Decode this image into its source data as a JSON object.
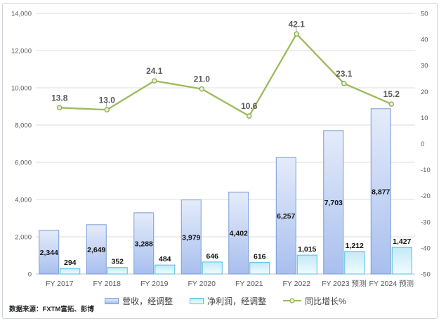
{
  "chart": {
    "source_note": "数据来源：FXTM富拓、彭博",
    "legend": [
      {
        "label": "营收，经调整"
      },
      {
        "label": "净利润，经调整"
      },
      {
        "label": "同比增长%"
      }
    ],
    "colors": {
      "revenue_border": "#7d9bd6",
      "revenue_fill_top": "#e4ecfa",
      "revenue_fill_bottom": "#a8bfee",
      "net_border": "#4ec1e0",
      "net_fill_top": "#c2eaf7",
      "net_fill_bottom": "#f2fbfe",
      "growth_line": "#9bbb59",
      "marker_fill": "#e8efda",
      "marker_stroke": "#8cab50",
      "gridline": "#dcdcdc",
      "axis_line": "#bfbfbf"
    }
  },
  "chart_data": {
    "type": "combo-bar-line",
    "categories": [
      "FY 2017",
      "FY 2018",
      "FY 2019",
      "FY 2020",
      "FY 2021",
      "FY 2022",
      "FY 2023 预测",
      "FY 2024 预测"
    ],
    "series": [
      {
        "name": "营收，经调整",
        "type": "bar",
        "axis": "left",
        "values": [
          2344,
          2649,
          3288,
          3979,
          4402,
          6257,
          7703,
          8877
        ],
        "labels": [
          "2,344",
          "2,649",
          "3,288",
          "3,979",
          "4,402",
          "6,257",
          "7,703",
          "8,877"
        ]
      },
      {
        "name": "净利润，经调整",
        "type": "bar",
        "axis": "left",
        "values": [
          294,
          352,
          484,
          646,
          616,
          1015,
          1212,
          1427
        ],
        "labels": [
          "294",
          "352",
          "484",
          "646",
          "616",
          "1,015",
          "1,212",
          "1,427"
        ]
      },
      {
        "name": "同比增长%",
        "type": "line",
        "axis": "right",
        "values": [
          13.8,
          13.0,
          24.1,
          21.0,
          10.6,
          42.1,
          23.1,
          15.2
        ],
        "labels": [
          "13.8",
          "13.0",
          "24.1",
          "21.0",
          "10.6",
          "42.1",
          "23.1",
          "15.2"
        ],
        "label_leader_indices": [
          1,
          5
        ]
      }
    ],
    "left_axis": {
      "min": 0,
      "max": 14000,
      "step": 2000,
      "tick_labels": [
        "0",
        "2,000",
        "4,000",
        "6,000",
        "8,000",
        "10,000",
        "12,000",
        "14,000"
      ]
    },
    "right_axis": {
      "min": -50,
      "max": 50,
      "step": 10,
      "tick_labels": [
        "-50",
        "-40",
        "-30",
        "-20",
        "-10",
        "0",
        "10",
        "20",
        "30",
        "40",
        "50"
      ]
    },
    "grid": "horizontal",
    "legend_position": "bottom"
  }
}
